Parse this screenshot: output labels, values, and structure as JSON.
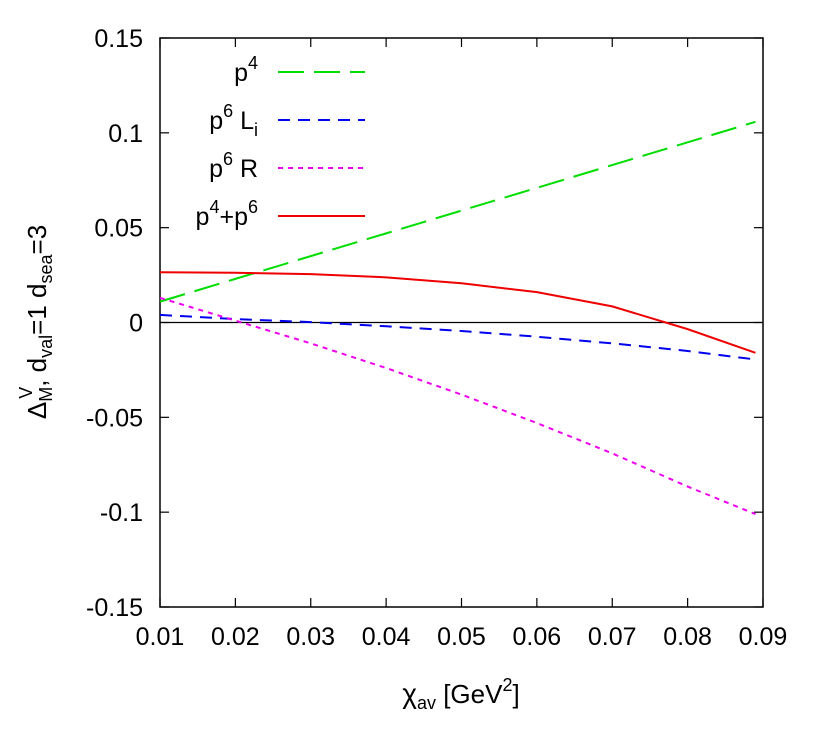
{
  "chart_data": {
    "type": "line",
    "xlabel": {
      "main": "χ",
      "sub": "av",
      "after": " [GeV",
      "sup": "2",
      "end": "]"
    },
    "ylabel": {
      "delta": "Δ",
      "delta_sub": "M",
      "delta_sup": "V",
      "mid": ", d",
      "val_sub": "val",
      "mid2": "=1 d",
      "sea_sub": "sea",
      "end": "=3"
    },
    "xlim": [
      0.01,
      0.09
    ],
    "ylim": [
      -0.15,
      0.15
    ],
    "xticks": [
      0.01,
      0.02,
      0.03,
      0.04,
      0.05,
      0.06,
      0.07,
      0.08,
      0.09
    ],
    "xtick_labels": [
      "0.01",
      "0.02",
      "0.03",
      "0.04",
      "0.05",
      "0.06",
      "0.07",
      "0.08",
      "0.09"
    ],
    "yticks": [
      -0.15,
      -0.1,
      -0.05,
      0,
      0.05,
      0.1,
      0.15
    ],
    "ytick_labels": [
      "-0.15",
      "-0.1",
      "-0.05",
      "0",
      "0.05",
      "0.1",
      "0.15"
    ],
    "zero_line": true,
    "grid": false,
    "legend_position": "top-left",
    "series": [
      {
        "name": "p4",
        "legend": {
          "parts": [
            {
              "t": "p"
            },
            {
              "t": "4",
              "sup": true
            }
          ]
        },
        "color": "#00dd00",
        "dash": "long",
        "x": [
          0.01,
          0.02,
          0.03,
          0.04,
          0.05,
          0.06,
          0.07,
          0.08,
          0.089
        ],
        "y": [
          0.011,
          0.023,
          0.035,
          0.047,
          0.059,
          0.071,
          0.083,
          0.095,
          0.1058
        ]
      },
      {
        "name": "p6 Li",
        "legend": {
          "parts": [
            {
              "t": "p"
            },
            {
              "t": "6",
              "sup": true
            },
            {
              "t": " L"
            },
            {
              "t": "i",
              "sub": true
            }
          ]
        },
        "color": "#0000ee",
        "dash": "medium",
        "x": [
          0.01,
          0.02,
          0.03,
          0.04,
          0.05,
          0.06,
          0.07,
          0.08,
          0.089
        ],
        "y": [
          0.004,
          0.0018,
          0.0002,
          -0.002,
          -0.0045,
          -0.0075,
          -0.011,
          -0.015,
          -0.0195
        ]
      },
      {
        "name": "p6 R",
        "legend": {
          "parts": [
            {
              "t": "p"
            },
            {
              "t": "6",
              "sup": true
            },
            {
              "t": " R"
            }
          ]
        },
        "color": "#ee00ee",
        "dash": "short",
        "x": [
          0.01,
          0.02,
          0.03,
          0.04,
          0.05,
          0.06,
          0.07,
          0.08,
          0.089
        ],
        "y": [
          0.013,
          0.001,
          -0.011,
          -0.024,
          -0.038,
          -0.053,
          -0.069,
          -0.0865,
          -0.101
        ]
      },
      {
        "name": "p4+p6",
        "legend": {
          "parts": [
            {
              "t": "p"
            },
            {
              "t": "4",
              "sup": true
            },
            {
              "t": "+p"
            },
            {
              "t": "6",
              "sup": true
            }
          ]
        },
        "color": "#ee0000",
        "dash": "solid",
        "x": [
          0.01,
          0.02,
          0.03,
          0.04,
          0.05,
          0.06,
          0.07,
          0.08,
          0.089
        ],
        "y": [
          0.0265,
          0.0262,
          0.0255,
          0.0238,
          0.0207,
          0.016,
          0.0085,
          -0.0035,
          -0.016
        ]
      }
    ]
  }
}
